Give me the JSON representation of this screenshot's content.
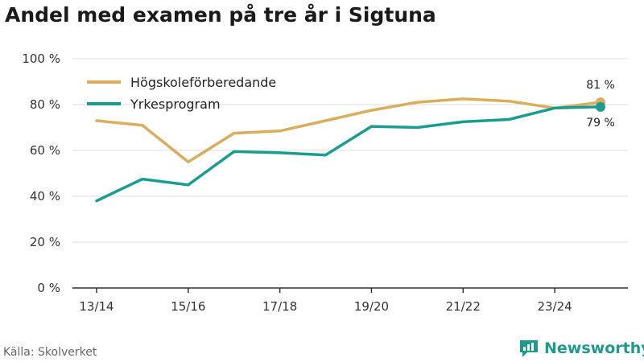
{
  "title": "Andel med examen på tre år i Sigtuna",
  "source": "Källa: Skolverket",
  "brand": {
    "name": "Newsworthy",
    "icon": "newsworthy-logo-icon"
  },
  "colors": {
    "series1": "#d9ae5e",
    "series2": "#1a9c8f",
    "grid": "#dddddd",
    "axis": "#333333"
  },
  "chart_data": {
    "type": "line",
    "x": [
      "13/14",
      "14/15",
      "15/16",
      "16/17",
      "17/18",
      "18/19",
      "19/20",
      "20/21",
      "21/22",
      "22/23",
      "23/24",
      "24/25"
    ],
    "x_tick_labels": [
      "13/14",
      "15/16",
      "17/18",
      "19/20",
      "21/22",
      "23/24"
    ],
    "y_tick_labels": [
      "0 %",
      "20 %",
      "40 %",
      "60 %",
      "80 %",
      "100 %"
    ],
    "ylim": [
      0,
      100
    ],
    "grid": true,
    "legend_position": "top-left",
    "series": [
      {
        "name": "Högskoleförberedande",
        "values": [
          73,
          71,
          55,
          67.5,
          68.5,
          73,
          77.5,
          81,
          82.5,
          81.5,
          78.5,
          81
        ]
      },
      {
        "name": "Yrkesprogram",
        "values": [
          38,
          47.5,
          45,
          59.5,
          59,
          58,
          70.5,
          70,
          72.5,
          73.5,
          78.5,
          79
        ]
      }
    ],
    "end_labels": [
      "81 %",
      "79 %"
    ]
  }
}
